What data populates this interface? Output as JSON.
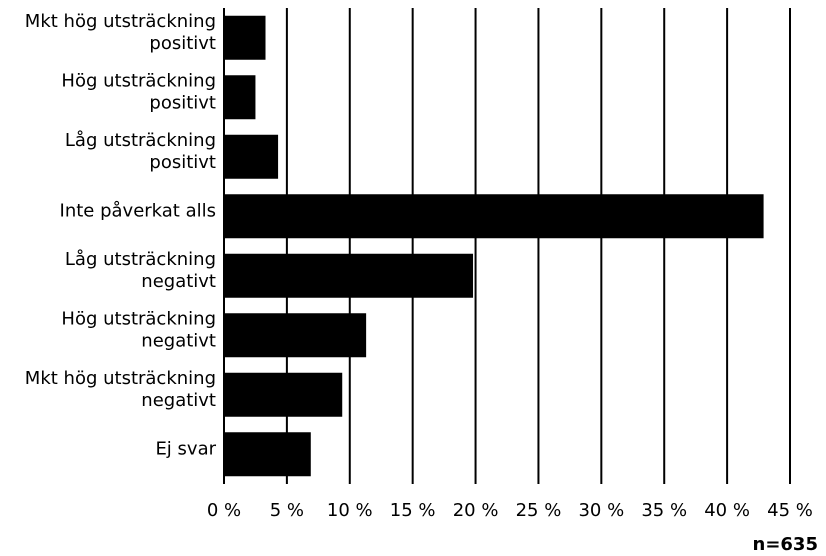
{
  "chart_data": {
    "type": "bar",
    "orientation": "horizontal",
    "categories": [
      [
        "Mkt hög utsträckning",
        "positivt"
      ],
      [
        "Hög utsträckning",
        "positivt"
      ],
      [
        "Låg utsträckning",
        "positivt"
      ],
      [
        "Inte påverkat alls"
      ],
      [
        "Låg utsträckning",
        "negativt"
      ],
      [
        "Hög utsträckning",
        "negativt"
      ],
      [
        "Mkt hög utsträckning",
        "negativt"
      ],
      [
        "Ej svar"
      ]
    ],
    "values": [
      3.3,
      2.5,
      4.3,
      42.9,
      19.8,
      11.3,
      9.4,
      6.9
    ],
    "x_ticks": [
      0,
      5,
      10,
      15,
      20,
      25,
      30,
      35,
      40,
      45
    ],
    "x_tick_labels": [
      "0 %",
      "5 %",
      "10 %",
      "15 %",
      "20 %",
      "25 %",
      "30 %",
      "35 %",
      "40 %",
      "45 %"
    ],
    "xlim": [
      0,
      45
    ],
    "title": "",
    "xlabel": "",
    "ylabel": "",
    "grid": "vertical",
    "bar_color": "#000000",
    "note": "n=635"
  }
}
